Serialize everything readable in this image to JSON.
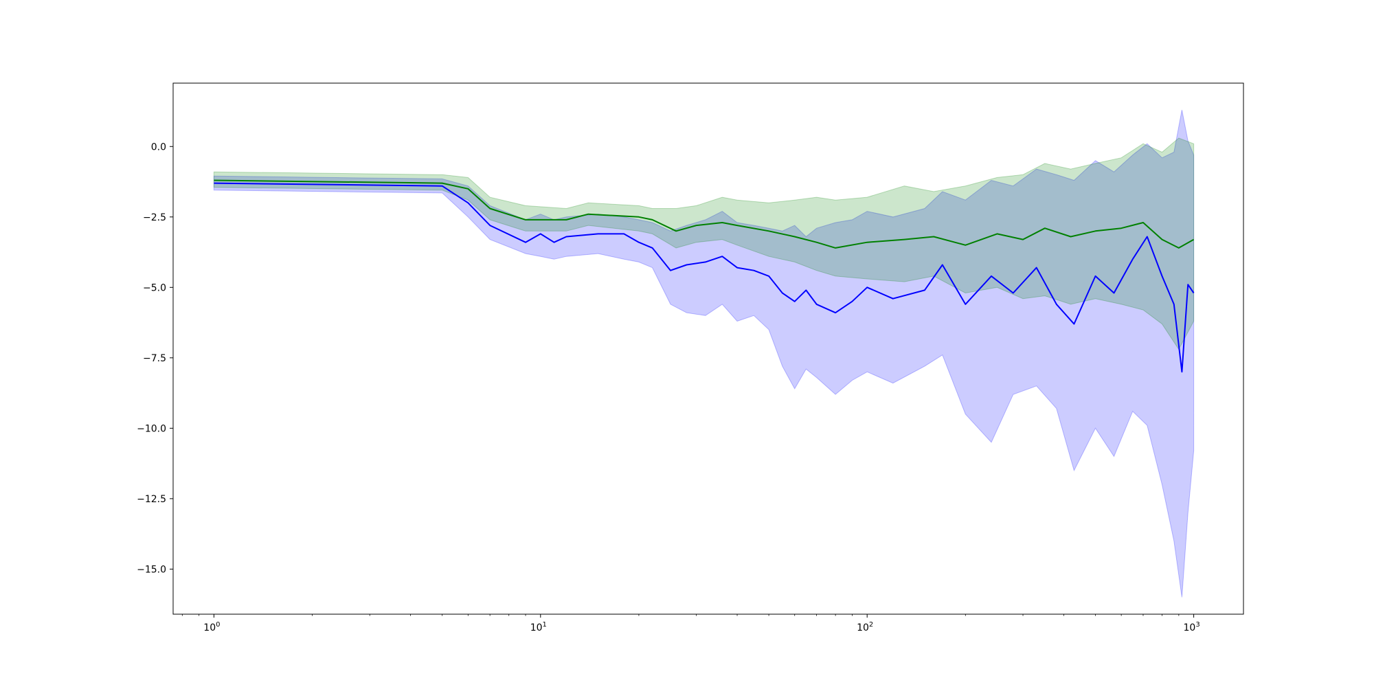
{
  "chart_data": {
    "type": "line",
    "title": "",
    "xlabel": "",
    "ylabel": "",
    "x_scale": "log",
    "xlim": [
      0.75,
      1420
    ],
    "ylim": [
      -16.6,
      2.25
    ],
    "grid": false,
    "legend": "none",
    "x_ticks": [
      {
        "value": 1,
        "base": "10",
        "exp": "0"
      },
      {
        "value": 10,
        "base": "10",
        "exp": "1"
      },
      {
        "value": 100,
        "base": "10",
        "exp": "2"
      },
      {
        "value": 1000,
        "base": "10",
        "exp": "3"
      }
    ],
    "y_ticks": [
      {
        "value": 0.0,
        "label": "0.0"
      },
      {
        "value": -2.5,
        "label": "−2.5"
      },
      {
        "value": -5.0,
        "label": "−5.0"
      },
      {
        "value": -7.5,
        "label": "−7.5"
      },
      {
        "value": -10.0,
        "label": "−10.0"
      },
      {
        "value": -12.5,
        "label": "−12.5"
      },
      {
        "value": -15.0,
        "label": "−15.0"
      }
    ],
    "series": [
      {
        "color": "#0000ff",
        "band_color": "#0000ff",
        "band_opacity": 0.2,
        "points": [
          {
            "x": 1,
            "y": -1.3,
            "lo": -1.55,
            "hi": -1.05
          },
          {
            "x": 5,
            "y": -1.4,
            "lo": -1.65,
            "hi": -1.15
          },
          {
            "x": 6,
            "y": -2.0,
            "lo": -2.5,
            "hi": -1.4
          },
          {
            "x": 7,
            "y": -2.8,
            "lo": -3.3,
            "hi": -2.1
          },
          {
            "x": 9,
            "y": -3.4,
            "lo": -3.8,
            "hi": -2.6
          },
          {
            "x": 10,
            "y": -3.1,
            "lo": -3.9,
            "hi": -2.4
          },
          {
            "x": 11,
            "y": -3.4,
            "lo": -4.0,
            "hi": -2.6
          },
          {
            "x": 12,
            "y": -3.2,
            "lo": -3.9,
            "hi": -2.5
          },
          {
            "x": 15,
            "y": -3.1,
            "lo": -3.8,
            "hi": -2.4
          },
          {
            "x": 18,
            "y": -3.1,
            "lo": -4.0,
            "hi": -2.5
          },
          {
            "x": 20,
            "y": -3.4,
            "lo": -4.1,
            "hi": -2.6
          },
          {
            "x": 22,
            "y": -3.6,
            "lo": -4.3,
            "hi": -2.7
          },
          {
            "x": 25,
            "y": -4.4,
            "lo": -5.6,
            "hi": -3.0
          },
          {
            "x": 28,
            "y": -4.2,
            "lo": -5.9,
            "hi": -2.8
          },
          {
            "x": 32,
            "y": -4.1,
            "lo": -6.0,
            "hi": -2.6
          },
          {
            "x": 36,
            "y": -3.9,
            "lo": -5.6,
            "hi": -2.3
          },
          {
            "x": 40,
            "y": -4.3,
            "lo": -6.2,
            "hi": -2.7
          },
          {
            "x": 45,
            "y": -4.4,
            "lo": -6.0,
            "hi": -2.8
          },
          {
            "x": 50,
            "y": -4.6,
            "lo": -6.5,
            "hi": -2.9
          },
          {
            "x": 55,
            "y": -5.2,
            "lo": -7.8,
            "hi": -3.0
          },
          {
            "x": 60,
            "y": -5.5,
            "lo": -8.6,
            "hi": -2.8
          },
          {
            "x": 65,
            "y": -5.1,
            "lo": -7.9,
            "hi": -3.2
          },
          {
            "x": 70,
            "y": -5.6,
            "lo": -8.2,
            "hi": -2.9
          },
          {
            "x": 80,
            "y": -5.9,
            "lo": -8.8,
            "hi": -2.7
          },
          {
            "x": 90,
            "y": -5.5,
            "lo": -8.3,
            "hi": -2.6
          },
          {
            "x": 100,
            "y": -5.0,
            "lo": -8.0,
            "hi": -2.3
          },
          {
            "x": 120,
            "y": -5.4,
            "lo": -8.4,
            "hi": -2.5
          },
          {
            "x": 150,
            "y": -5.1,
            "lo": -7.8,
            "hi": -2.2
          },
          {
            "x": 170,
            "y": -4.2,
            "lo": -7.4,
            "hi": -1.6
          },
          {
            "x": 200,
            "y": -5.6,
            "lo": -9.5,
            "hi": -1.9
          },
          {
            "x": 240,
            "y": -4.6,
            "lo": -10.5,
            "hi": -1.2
          },
          {
            "x": 280,
            "y": -5.2,
            "lo": -8.8,
            "hi": -1.4
          },
          {
            "x": 330,
            "y": -4.3,
            "lo": -8.5,
            "hi": -0.8
          },
          {
            "x": 380,
            "y": -5.6,
            "lo": -9.3,
            "hi": -1.0
          },
          {
            "x": 430,
            "y": -6.3,
            "lo": -11.5,
            "hi": -1.2
          },
          {
            "x": 500,
            "y": -4.6,
            "lo": -10.0,
            "hi": -0.5
          },
          {
            "x": 570,
            "y": -5.2,
            "lo": -11.0,
            "hi": -0.9
          },
          {
            "x": 650,
            "y": -4.0,
            "lo": -9.4,
            "hi": -0.3
          },
          {
            "x": 720,
            "y": -3.2,
            "lo": -9.9,
            "hi": 0.1
          },
          {
            "x": 800,
            "y": -4.6,
            "lo": -12.0,
            "hi": -0.4
          },
          {
            "x": 870,
            "y": -5.6,
            "lo": -14.0,
            "hi": -0.2
          },
          {
            "x": 920,
            "y": -8.0,
            "lo": -16.0,
            "hi": 1.3
          },
          {
            "x": 960,
            "y": -4.9,
            "lo": -13.0,
            "hi": 0.2
          },
          {
            "x": 1000,
            "y": -5.2,
            "lo": -10.8,
            "hi": -0.3
          }
        ]
      },
      {
        "color": "#008000",
        "band_color": "#008000",
        "band_opacity": 0.2,
        "points": [
          {
            "x": 1,
            "y": -1.2,
            "lo": -1.45,
            "hi": -0.9
          },
          {
            "x": 5,
            "y": -1.3,
            "lo": -1.55,
            "hi": -1.0
          },
          {
            "x": 6,
            "y": -1.5,
            "lo": -1.9,
            "hi": -1.1
          },
          {
            "x": 7,
            "y": -2.2,
            "lo": -2.6,
            "hi": -1.8
          },
          {
            "x": 9,
            "y": -2.6,
            "lo": -3.0,
            "hi": -2.1
          },
          {
            "x": 12,
            "y": -2.6,
            "lo": -3.0,
            "hi": -2.2
          },
          {
            "x": 14,
            "y": -2.4,
            "lo": -2.8,
            "hi": -2.0
          },
          {
            "x": 20,
            "y": -2.5,
            "lo": -3.0,
            "hi": -2.1
          },
          {
            "x": 22,
            "y": -2.6,
            "lo": -3.1,
            "hi": -2.2
          },
          {
            "x": 26,
            "y": -3.0,
            "lo": -3.6,
            "hi": -2.2
          },
          {
            "x": 30,
            "y": -2.8,
            "lo": -3.4,
            "hi": -2.1
          },
          {
            "x": 36,
            "y": -2.7,
            "lo": -3.3,
            "hi": -1.8
          },
          {
            "x": 40,
            "y": -2.8,
            "lo": -3.5,
            "hi": -1.9
          },
          {
            "x": 50,
            "y": -3.0,
            "lo": -3.9,
            "hi": -2.0
          },
          {
            "x": 60,
            "y": -3.2,
            "lo": -4.1,
            "hi": -1.9
          },
          {
            "x": 70,
            "y": -3.4,
            "lo": -4.4,
            "hi": -1.8
          },
          {
            "x": 80,
            "y": -3.6,
            "lo": -4.6,
            "hi": -1.9
          },
          {
            "x": 100,
            "y": -3.4,
            "lo": -4.7,
            "hi": -1.8
          },
          {
            "x": 130,
            "y": -3.3,
            "lo": -4.8,
            "hi": -1.4
          },
          {
            "x": 160,
            "y": -3.2,
            "lo": -4.6,
            "hi": -1.6
          },
          {
            "x": 200,
            "y": -3.5,
            "lo": -5.2,
            "hi": -1.4
          },
          {
            "x": 250,
            "y": -3.1,
            "lo": -5.0,
            "hi": -1.1
          },
          {
            "x": 300,
            "y": -3.3,
            "lo": -5.4,
            "hi": -1.0
          },
          {
            "x": 350,
            "y": -2.9,
            "lo": -5.3,
            "hi": -0.6
          },
          {
            "x": 420,
            "y": -3.2,
            "lo": -5.6,
            "hi": -0.8
          },
          {
            "x": 500,
            "y": -3.0,
            "lo": -5.4,
            "hi": -0.6
          },
          {
            "x": 600,
            "y": -2.9,
            "lo": -5.6,
            "hi": -0.4
          },
          {
            "x": 700,
            "y": -2.7,
            "lo": -5.8,
            "hi": 0.1
          },
          {
            "x": 800,
            "y": -3.3,
            "lo": -6.3,
            "hi": -0.2
          },
          {
            "x": 900,
            "y": -3.6,
            "lo": -7.2,
            "hi": 0.3
          },
          {
            "x": 1000,
            "y": -3.3,
            "lo": -6.2,
            "hi": 0.1
          }
        ]
      }
    ]
  }
}
